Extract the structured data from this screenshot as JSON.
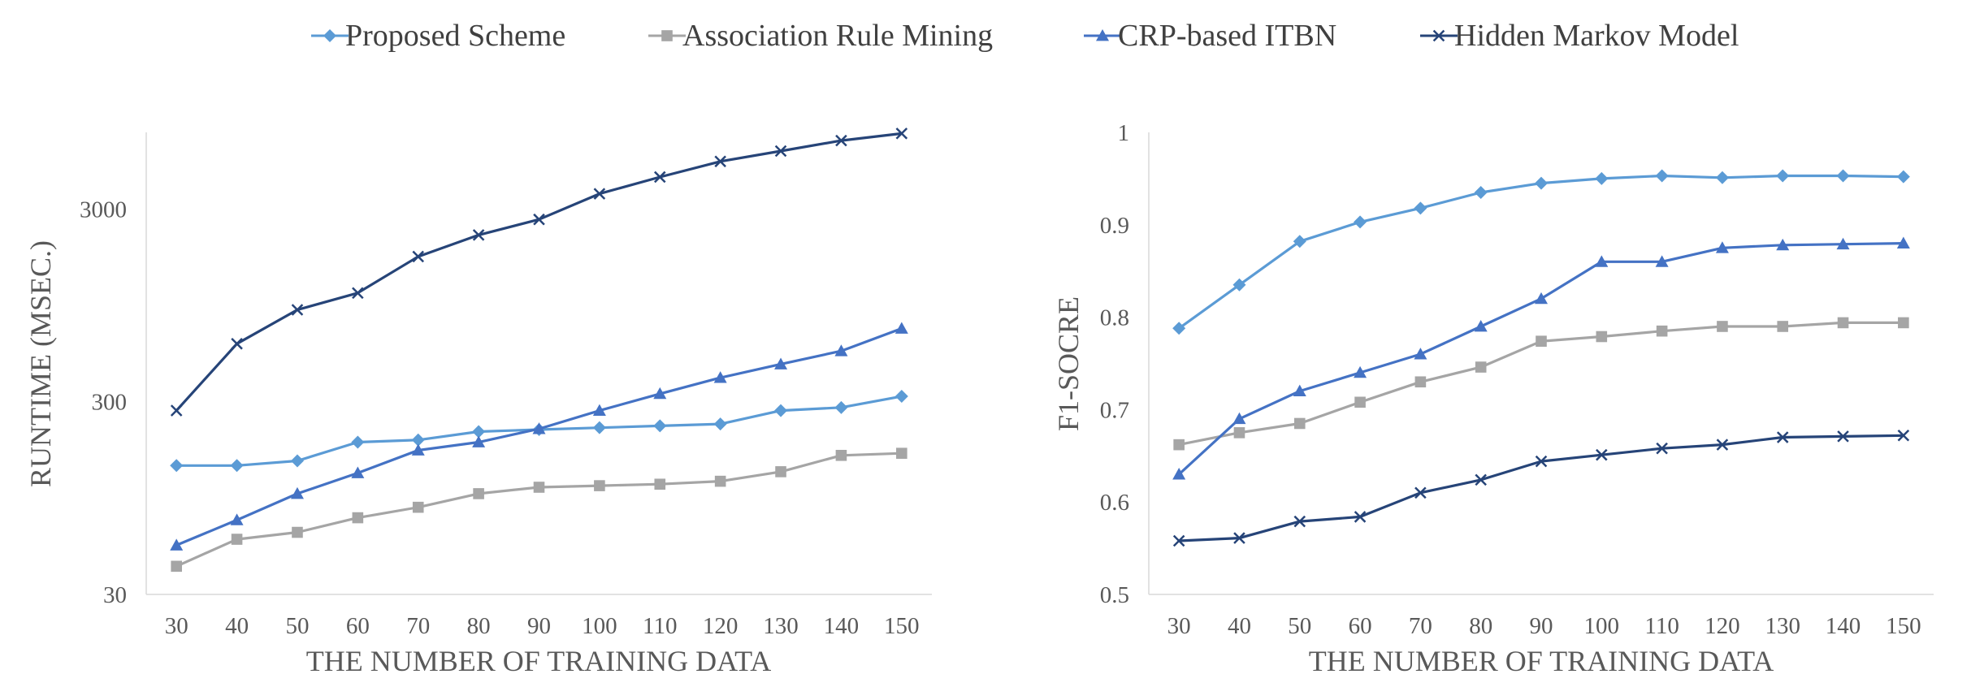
{
  "legend": [
    {
      "name": "Proposed Scheme",
      "color": "#5b9bd5",
      "marker": "diamond"
    },
    {
      "name": "Association Rule Mining",
      "color": "#a5a5a5",
      "marker": "square"
    },
    {
      "name": "CRP-based ITBN",
      "color": "#4472c4",
      "marker": "triangle"
    },
    {
      "name": "Hidden Markov Model",
      "color": "#264478",
      "marker": "x"
    }
  ],
  "chart_data": [
    {
      "type": "line",
      "title": "",
      "xlabel": "THE NUMBER OF TRAINING DATA",
      "ylabel": "RUNTIME (MSEC.)",
      "yscale": "log",
      "ylim": [
        30,
        7500
      ],
      "y_ticks": [
        "30",
        "300",
        "3000"
      ],
      "categories": [
        "30",
        "40",
        "50",
        "60",
        "70",
        "80",
        "90",
        "100",
        "110",
        "120",
        "130",
        "140",
        "150"
      ],
      "series": [
        {
          "name": "Proposed Scheme",
          "color": "#5b9bd5",
          "marker": "diamond",
          "values": [
            140,
            140,
            148,
            185,
            190,
            210,
            215,
            220,
            225,
            230,
            270,
            280,
            320
          ]
        },
        {
          "name": "Association Rule Mining",
          "color": "#a5a5a5",
          "marker": "square",
          "values": [
            42,
            58,
            63,
            75,
            85,
            100,
            108,
            110,
            112,
            116,
            130,
            158,
            162
          ]
        },
        {
          "name": "CRP-based ITBN",
          "color": "#4472c4",
          "marker": "triangle",
          "values": [
            54,
            73,
            100,
            128,
            168,
            185,
            217,
            270,
            330,
            400,
            470,
            550,
            720
          ]
        },
        {
          "name": "Hidden Markov Model",
          "color": "#264478",
          "marker": "x",
          "values": [
            270,
            600,
            900,
            1100,
            1700,
            2200,
            2650,
            3600,
            4400,
            5300,
            6000,
            6800,
            7400
          ]
        }
      ]
    },
    {
      "type": "line",
      "title": "",
      "xlabel": "THE NUMBER OF TRAINING DATA",
      "ylabel": "F1-SOCRE",
      "ylim": [
        0.5,
        1
      ],
      "y_ticks": [
        "0.5",
        "0.6",
        "0.7",
        "0.8",
        "0.9",
        "1"
      ],
      "categories": [
        "30",
        "40",
        "50",
        "60",
        "70",
        "80",
        "90",
        "100",
        "110",
        "120",
        "130",
        "140",
        "150"
      ],
      "series": [
        {
          "name": "Proposed Scheme",
          "color": "#5b9bd5",
          "marker": "diamond",
          "values": [
            0.788,
            0.835,
            0.882,
            0.903,
            0.918,
            0.935,
            0.945,
            0.95,
            0.953,
            0.951,
            0.953,
            0.953,
            0.952
          ]
        },
        {
          "name": "Association Rule Mining",
          "color": "#a5a5a5",
          "marker": "square",
          "values": [
            0.662,
            0.675,
            0.685,
            0.708,
            0.73,
            0.746,
            0.774,
            0.779,
            0.785,
            0.79,
            0.79,
            0.794,
            0.794
          ]
        },
        {
          "name": "CRP-based ITBN",
          "color": "#4472c4",
          "marker": "triangle",
          "values": [
            0.63,
            0.69,
            0.72,
            0.74,
            0.76,
            0.79,
            0.82,
            0.86,
            0.86,
            0.875,
            0.878,
            0.879,
            0.88
          ]
        },
        {
          "name": "Hidden Markov Model",
          "color": "#264478",
          "marker": "x",
          "values": [
            0.558,
            0.561,
            0.579,
            0.584,
            0.61,
            0.624,
            0.644,
            0.651,
            0.658,
            0.662,
            0.67,
            0.671,
            0.672
          ]
        }
      ]
    }
  ]
}
